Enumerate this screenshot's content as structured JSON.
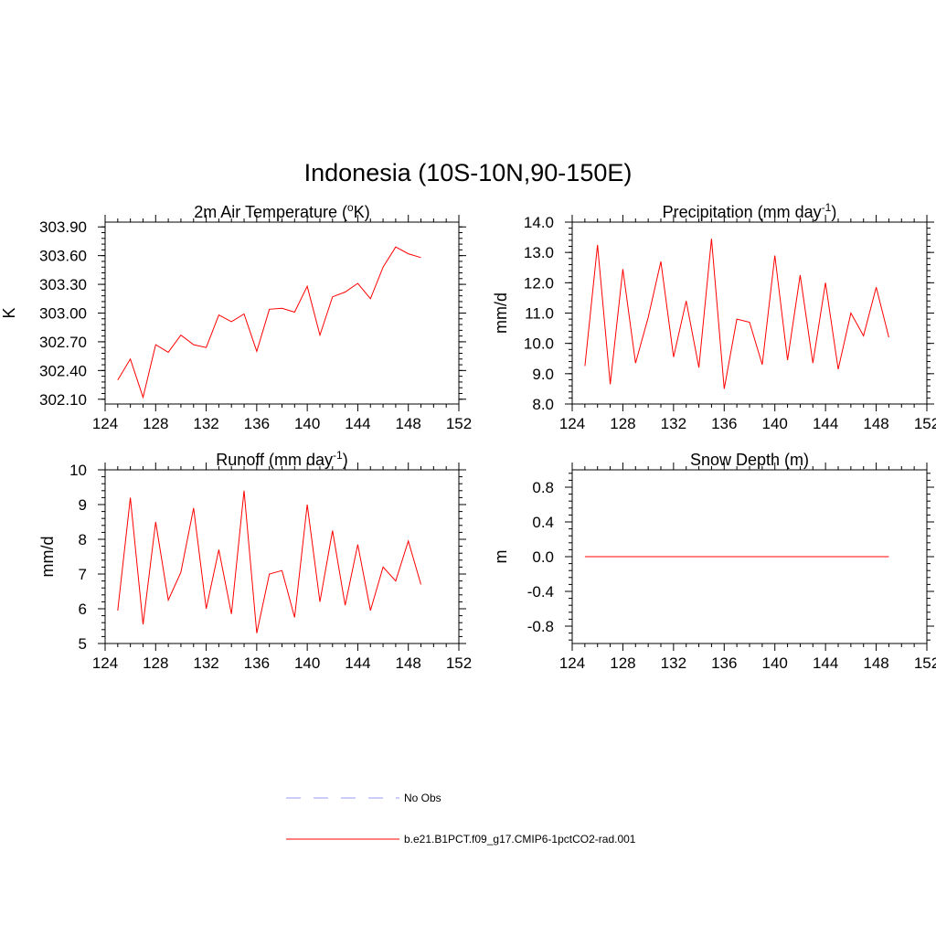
{
  "figure": {
    "title": "Indonesia (10S-10N,90-150E)"
  },
  "chart_data": [
    {
      "type": "line",
      "title": "2m Air Temperature (",
      "title_sup": "o",
      "title_after": "K)",
      "xlabel": "",
      "ylabel": "K",
      "xlim": [
        124,
        152
      ],
      "xticks": [
        124,
        128,
        132,
        136,
        140,
        144,
        148,
        152
      ],
      "ylim": [
        302.05,
        303.95
      ],
      "yticks": [
        302.1,
        302.4,
        302.7,
        303.0,
        303.3,
        303.6,
        303.9
      ],
      "ytick_labels": [
        "302.10",
        "302.40",
        "302.70",
        "303.00",
        "303.30",
        "303.60",
        "303.90"
      ],
      "x": [
        125,
        126,
        127,
        128,
        129,
        130,
        131,
        132,
        133,
        134,
        135,
        136,
        137,
        138,
        139,
        140,
        141,
        142,
        143,
        144,
        145,
        146,
        147,
        148,
        149
      ],
      "series": [
        {
          "color": "#ff0000",
          "values": [
            302.3,
            302.52,
            302.12,
            302.67,
            302.59,
            302.77,
            302.67,
            302.64,
            302.98,
            302.91,
            302.99,
            302.6,
            303.04,
            303.05,
            303.01,
            303.28,
            302.77,
            303.17,
            303.22,
            303.31,
            303.15,
            303.48,
            303.69,
            303.62,
            303.58
          ]
        }
      ]
    },
    {
      "type": "line",
      "title": "Precipitation (mm day",
      "title_sup": "-1",
      "title_after": ")",
      "xlabel": "",
      "ylabel": "mm/d",
      "xlim": [
        124,
        152
      ],
      "xticks": [
        124,
        128,
        132,
        136,
        140,
        144,
        148,
        152
      ],
      "ylim": [
        8.0,
        14.0
      ],
      "yticks": [
        8.0,
        9.0,
        10.0,
        11.0,
        12.0,
        13.0,
        14.0
      ],
      "ytick_labels": [
        "8.0",
        "9.0",
        "10.0",
        "11.0",
        "12.0",
        "13.0",
        "14.0"
      ],
      "x": [
        125,
        126,
        127,
        128,
        129,
        130,
        131,
        132,
        133,
        134,
        135,
        136,
        137,
        138,
        139,
        140,
        141,
        142,
        143,
        144,
        145,
        146,
        147,
        148,
        149
      ],
      "series": [
        {
          "color": "#ff0000",
          "values": [
            9.25,
            13.25,
            8.65,
            12.45,
            9.35,
            10.85,
            12.7,
            9.55,
            11.4,
            9.2,
            13.45,
            8.5,
            10.8,
            10.7,
            9.3,
            12.9,
            9.45,
            12.25,
            9.35,
            12.0,
            9.15,
            11.0,
            10.25,
            11.85,
            10.2
          ]
        }
      ]
    },
    {
      "type": "line",
      "title": "Runoff (mm day",
      "title_sup": "-1",
      "title_after": ")",
      "xlabel": "",
      "ylabel": "mm/d",
      "xlim": [
        124,
        152
      ],
      "xticks": [
        124,
        128,
        132,
        136,
        140,
        144,
        148,
        152
      ],
      "ylim": [
        5,
        10
      ],
      "yticks": [
        5,
        6,
        7,
        8,
        9,
        10
      ],
      "ytick_labels": [
        "5",
        "6",
        "7",
        "8",
        "9",
        "10"
      ],
      "x": [
        125,
        126,
        127,
        128,
        129,
        130,
        131,
        132,
        133,
        134,
        135,
        136,
        137,
        138,
        139,
        140,
        141,
        142,
        143,
        144,
        145,
        146,
        147,
        148,
        149
      ],
      "series": [
        {
          "color": "#ff0000",
          "values": [
            5.95,
            9.2,
            5.55,
            8.5,
            6.25,
            7.05,
            8.9,
            6.0,
            7.7,
            5.85,
            9.4,
            5.3,
            7.0,
            7.1,
            5.75,
            9.0,
            6.2,
            8.25,
            6.1,
            7.85,
            5.95,
            7.2,
            6.8,
            7.95,
            6.7
          ]
        }
      ]
    },
    {
      "type": "line",
      "title": "Snow Depth (m)",
      "title_sup": "",
      "title_after": "",
      "xlabel": "",
      "ylabel": "m",
      "xlim": [
        124,
        152
      ],
      "xticks": [
        124,
        128,
        132,
        136,
        140,
        144,
        148,
        152
      ],
      "ylim": [
        -1.0,
        1.0
      ],
      "yticks": [
        -0.8,
        -0.4,
        0.0,
        0.4,
        0.8
      ],
      "ytick_labels": [
        "-0.8",
        "-0.4",
        "0.0",
        "0.4",
        "0.8"
      ],
      "x": [
        125,
        126,
        127,
        128,
        129,
        130,
        131,
        132,
        133,
        134,
        135,
        136,
        137,
        138,
        139,
        140,
        141,
        142,
        143,
        144,
        145,
        146,
        147,
        148,
        149
      ],
      "series": [
        {
          "color": "#ff0000",
          "values": [
            0,
            0,
            0,
            0,
            0,
            0,
            0,
            0,
            0,
            0,
            0,
            0,
            0,
            0,
            0,
            0,
            0,
            0,
            0,
            0,
            0,
            0,
            0,
            0,
            0
          ]
        }
      ]
    }
  ],
  "legend": {
    "entries": [
      {
        "label": "No Obs",
        "color": "#9999ff",
        "dash": true
      },
      {
        "label": "b.e21.B1PCT.f09_g17.CMIP6-1pctCO2-rad.001",
        "color": "#ff0000",
        "dash": false
      }
    ]
  }
}
